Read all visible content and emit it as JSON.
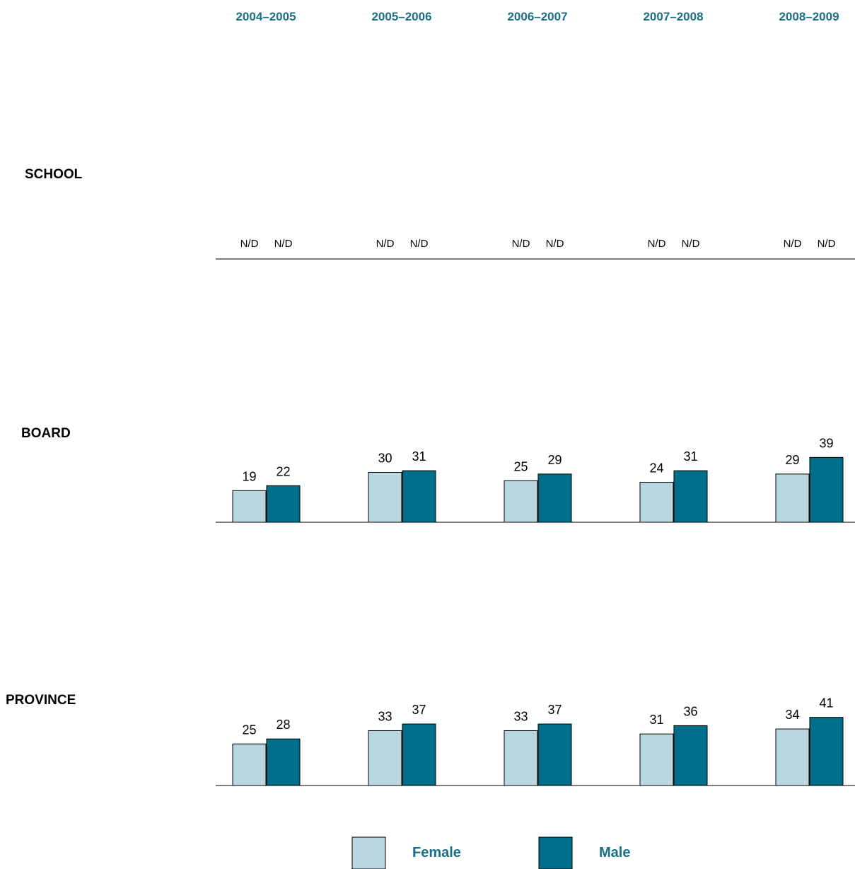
{
  "chart_data": {
    "type": "bar",
    "categories": [
      "2004–2005",
      "2005–2006",
      "2006–2007",
      "2007–2008",
      "2008–2009"
    ],
    "panels": [
      {
        "label": "SCHOOL",
        "series": [
          {
            "name": "Female",
            "values": [
              null,
              null,
              null,
              null,
              null
            ],
            "labels": [
              "N/D",
              "N/D",
              "N/D",
              "N/D",
              "N/D"
            ]
          },
          {
            "name": "Male",
            "values": [
              null,
              null,
              null,
              null,
              null
            ],
            "labels": [
              "N/D",
              "N/D",
              "N/D",
              "N/D",
              "N/D"
            ]
          }
        ]
      },
      {
        "label": "BOARD",
        "series": [
          {
            "name": "Female",
            "values": [
              19,
              30,
              25,
              24,
              29
            ]
          },
          {
            "name": "Male",
            "values": [
              22,
              31,
              29,
              31,
              39
            ]
          }
        ]
      },
      {
        "label": "PROVINCE",
        "series": [
          {
            "name": "Female",
            "values": [
              25,
              33,
              33,
              31,
              34
            ]
          },
          {
            "name": "Male",
            "values": [
              28,
              37,
              37,
              36,
              41
            ]
          }
        ]
      }
    ],
    "legend": {
      "placement": "bottom",
      "items": [
        "Female",
        "Male"
      ]
    },
    "colors": {
      "female": "#b8d7e1",
      "male": "#006e8a",
      "year_text": "#1b6f86",
      "legend_text": "#1b6f86"
    },
    "ylim": [
      0,
      100
    ],
    "grid": false
  }
}
